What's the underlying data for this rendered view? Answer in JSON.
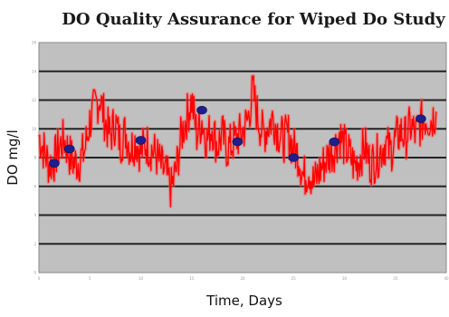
{
  "chart_data": {
    "type": "line",
    "title": "DO Quality Assurance for Wiped Do Study",
    "xlabel": "Time, Days",
    "ylabel": "DO mg/l",
    "xlim": [
      0,
      40
    ],
    "ylim": [
      0,
      16
    ],
    "grid": true,
    "legend": "none",
    "colors": {
      "plot_background": "#c0c0c0",
      "gridline": "#222222",
      "series_line": "#ff0000",
      "markers": "#1e1e8c"
    },
    "series": [
      {
        "type": "line",
        "x": [
          0,
          0.5,
          1,
          1.5,
          2,
          2.5,
          3,
          3.5,
          4,
          4.5,
          5,
          5.5,
          6,
          6.5,
          7,
          7.5,
          8,
          8.5,
          9,
          9.5,
          10,
          10.5,
          11,
          11.5,
          12,
          12.5,
          13,
          13.5,
          14,
          14.5,
          15,
          15.5,
          16,
          16.5,
          17,
          17.5,
          18,
          18.5,
          19,
          19.5,
          20,
          20.5,
          21,
          21.5,
          22,
          22.5,
          23,
          23.5,
          24,
          24.5,
          25,
          25.5,
          26,
          26.5,
          27,
          27.5,
          28,
          28.5,
          29,
          29.5,
          30,
          30.5,
          31,
          31.5,
          32,
          32.5,
          33,
          33.5,
          34,
          34.5,
          35,
          35.5,
          36,
          36.5,
          37,
          37.5,
          38,
          38.5,
          39
        ],
        "y": [
          9.5,
          8.5,
          7.5,
          7.8,
          8.8,
          9.2,
          8.2,
          7.6,
          7.8,
          8.5,
          10.5,
          11.5,
          12.2,
          10.5,
          9.5,
          10.5,
          9.0,
          9.8,
          8.6,
          9.2,
          8.4,
          9.0,
          8.6,
          8.2,
          7.4,
          6.8,
          5.8,
          7.2,
          9.6,
          10.8,
          12.0,
          9.6,
          10.6,
          9.2,
          10.2,
          8.8,
          9.6,
          8.6,
          9.0,
          9.4,
          9.8,
          10.6,
          12.6,
          10.8,
          9.6,
          10.2,
          10.8,
          9.8,
          9.2,
          9.6,
          8.6,
          8.2,
          6.6,
          7.2,
          6.2,
          7.0,
          7.6,
          8.2,
          8.6,
          9.6,
          8.8,
          8.2,
          7.4,
          8.0,
          8.8,
          7.6,
          7.8,
          8.4,
          9.0,
          8.4,
          9.2,
          9.8,
          9.4,
          10.2,
          9.6,
          10.4,
          10.8,
          10.6,
          11.2
        ]
      },
      {
        "type": "scatter",
        "x": [
          1.5,
          3,
          10,
          16,
          19.5,
          25,
          29,
          37.5
        ],
        "y": [
          7.6,
          8.6,
          9.2,
          11.3,
          9.1,
          8.0,
          9.1,
          10.7
        ]
      }
    ]
  }
}
